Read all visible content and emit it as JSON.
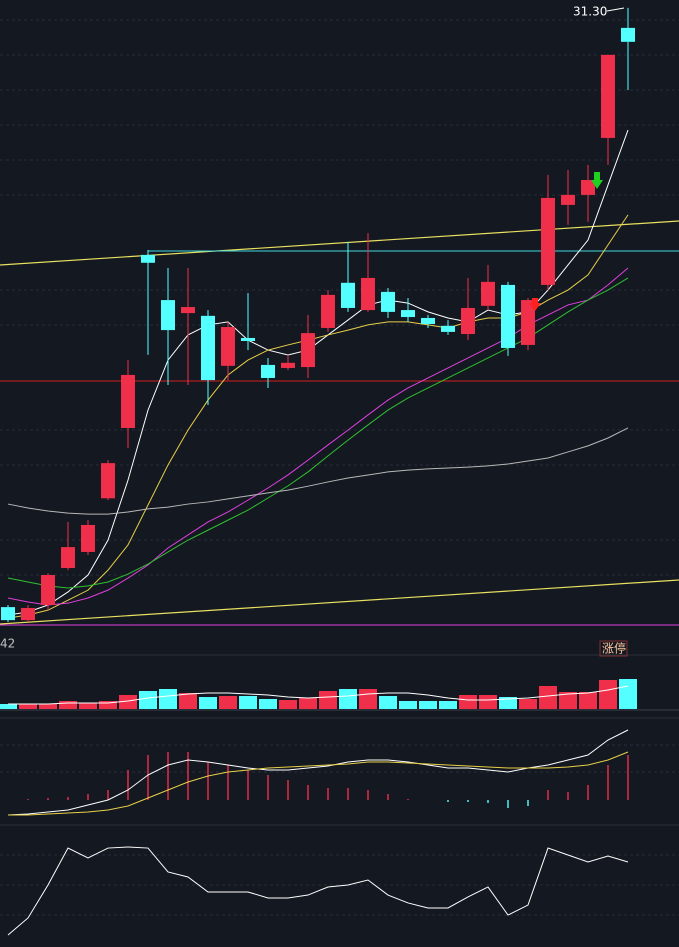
{
  "chart_data": [
    {
      "type": "candlestick",
      "annotation": "31.30",
      "up_color": "#f0304a",
      "down_color": "#54ffff",
      "ylim": [
        10.94,
        31.56
      ],
      "open": [
        11.53,
        11.1,
        11.6,
        12.82,
        13.35,
        15.12,
        17.44,
        23.15,
        21.66,
        21.23,
        21.14,
        19.49,
        20.41,
        19.52,
        19.42,
        19.45,
        20.74,
        22.23,
        21.33,
        21.93,
        21.33,
        21.07,
        20.81,
        20.54,
        21.47,
        22.16,
        20.18,
        22.16,
        24.8,
        25.13,
        27.01,
        30.64
      ],
      "close": [
        11.1,
        11.5,
        12.59,
        13.51,
        14.24,
        16.28,
        19.19,
        22.89,
        20.67,
        21.43,
        19.02,
        20.77,
        20.31,
        19.09,
        19.59,
        20.57,
        21.83,
        21.4,
        22.39,
        21.27,
        21.1,
        20.87,
        20.61,
        21.4,
        22.26,
        20.08,
        21.66,
        25.03,
        25.13,
        25.62,
        29.75,
        30.18
      ],
      "high": [
        11.6,
        11.6,
        12.65,
        14.34,
        14.4,
        16.38,
        19.68,
        23.31,
        22.72,
        22.72,
        21.33,
        20.94,
        21.89,
        19.75,
        19.85,
        21.17,
        21.99,
        23.58,
        23.87,
        22.06,
        21.73,
        21.17,
        21.0,
        22.39,
        22.82,
        22.26,
        21.73,
        25.79,
        25.95,
        26.12,
        29.75,
        31.3
      ],
      "low": [
        11.04,
        11.04,
        11.43,
        12.75,
        13.25,
        15.06,
        16.78,
        19.85,
        18.86,
        18.86,
        18.2,
        19.02,
        20.01,
        18.76,
        19.35,
        19.09,
        20.61,
        21.27,
        21.27,
        21.07,
        20.94,
        20.74,
        20.51,
        20.34,
        21.33,
        19.82,
        20.01,
        21.99,
        24.14,
        24.24,
        26.12,
        28.59
      ],
      "overlays": [
        {
          "color": "#ffffff",
          "values": [
            11.27,
            11.37,
            11.6,
            12.03,
            12.59,
            13.74,
            15.72,
            18.03,
            19.68,
            20.51,
            20.84,
            20.94,
            20.34,
            20.01,
            19.85,
            20.01,
            20.51,
            21.0,
            21.5,
            21.66,
            21.56,
            21.27,
            21.07,
            20.94,
            21.33,
            21.17,
            21.27,
            21.99,
            22.82,
            23.64,
            25.46,
            27.27
          ]
        },
        {
          "color": "#e8d048",
          "values": [
            11.17,
            11.27,
            11.43,
            11.76,
            12.09,
            12.75,
            13.58,
            14.9,
            16.22,
            17.37,
            18.36,
            19.19,
            19.68,
            20.01,
            20.18,
            20.34,
            20.51,
            20.67,
            20.84,
            20.94,
            20.94,
            20.84,
            20.74,
            20.94,
            21.07,
            21.07,
            21.27,
            21.66,
            21.99,
            22.49,
            23.48,
            24.47
          ]
        },
        {
          "color": "#e040e0",
          "values": [
            11.83,
            11.7,
            11.6,
            11.66,
            11.83,
            12.09,
            12.49,
            12.92,
            13.48,
            13.91,
            14.34,
            14.67,
            15.06,
            15.46,
            15.89,
            16.38,
            16.88,
            17.37,
            17.87,
            18.36,
            18.76,
            19.09,
            19.42,
            19.75,
            20.08,
            20.41,
            20.84,
            21.17,
            21.5,
            21.66,
            22.16,
            22.72
          ]
        },
        {
          "color": "#30c030",
          "values": [
            12.49,
            12.36,
            12.23,
            12.16,
            12.23,
            12.36,
            12.62,
            12.95,
            13.35,
            13.74,
            14.07,
            14.4,
            14.73,
            15.13,
            15.53,
            15.99,
            16.52,
            17.04,
            17.54,
            18.03,
            18.43,
            18.76,
            19.09,
            19.42,
            19.75,
            20.08,
            20.41,
            20.84,
            21.27,
            21.66,
            21.99,
            22.39
          ]
        },
        {
          "color": "#b8b8b8",
          "values": [
            14.93,
            14.8,
            14.7,
            14.63,
            14.6,
            14.6,
            14.67,
            14.77,
            14.83,
            14.93,
            15.0,
            15.1,
            15.2,
            15.3,
            15.39,
            15.52,
            15.66,
            15.79,
            15.89,
            15.99,
            16.05,
            16.09,
            16.12,
            16.15,
            16.19,
            16.25,
            16.35,
            16.45,
            16.65,
            16.85,
            17.11,
            17.44
          ]
        }
      ]
    },
    {
      "type": "bar",
      "label": "42",
      "badge": "涨停",
      "ylim": [
        0,
        60
      ],
      "values": [
        5,
        5,
        5,
        8,
        6,
        8,
        14,
        18,
        20,
        16,
        12,
        13,
        13,
        10,
        9,
        11,
        18,
        20,
        20,
        13,
        8,
        8,
        8,
        14,
        14,
        12,
        10,
        23,
        17,
        17,
        29,
        30
      ],
      "overlays": [
        {
          "color": "#ffffff",
          "values": [
            5,
            5,
            5,
            6,
            6,
            6,
            8,
            11,
            13,
            15,
            16,
            16,
            15,
            14,
            12,
            11,
            12,
            13,
            15,
            16,
            16,
            14,
            11,
            9,
            9,
            10,
            11,
            13,
            15,
            16,
            19,
            23
          ]
        }
      ]
    },
    {
      "type": "macd",
      "ylim": [
        -0.5,
        1.5
      ],
      "values": [
        0,
        0.02,
        0.04,
        0.06,
        0.12,
        0.2,
        0.6,
        0.9,
        0.96,
        0.96,
        0.76,
        0.7,
        0.6,
        0.5,
        0.4,
        0.3,
        0.24,
        0.24,
        0.2,
        0.12,
        0.02,
        0,
        -0.04,
        -0.04,
        -0.06,
        -0.16,
        -0.12,
        0.2,
        0.16,
        0.3,
        0.7,
        0.9
      ],
      "overlays": [
        {
          "color": "#ffffff",
          "values": [
            -0.3,
            -0.28,
            -0.24,
            -0.2,
            -0.1,
            0,
            0.2,
            0.5,
            0.7,
            0.8,
            0.76,
            0.7,
            0.64,
            0.6,
            0.6,
            0.64,
            0.68,
            0.76,
            0.8,
            0.8,
            0.76,
            0.7,
            0.64,
            0.64,
            0.6,
            0.56,
            0.64,
            0.7,
            0.8,
            0.9,
            1.2,
            1.4
          ]
        },
        {
          "color": "#e8d048",
          "values": [
            -0.3,
            -0.3,
            -0.28,
            -0.26,
            -0.24,
            -0.2,
            -0.12,
            0.04,
            0.2,
            0.36,
            0.48,
            0.56,
            0.6,
            0.64,
            0.66,
            0.68,
            0.7,
            0.72,
            0.76,
            0.76,
            0.74,
            0.72,
            0.7,
            0.68,
            0.66,
            0.64,
            0.64,
            0.64,
            0.66,
            0.7,
            0.8,
            0.96
          ]
        }
      ]
    },
    {
      "type": "line",
      "ylim": [
        0,
        100
      ],
      "color": "#ffffff",
      "values": [
        9.8,
        23.8,
        50.8,
        81.1,
        73.0,
        81.1,
        82.0,
        81.1,
        61.5,
        57.4,
        45.1,
        45.1,
        45.1,
        40.2,
        40.2,
        42.6,
        49.2,
        50.8,
        54.9,
        42.6,
        36.1,
        32.0,
        32.0,
        41.0,
        49.2,
        26.2,
        34.4,
        81.1,
        75.4,
        69.7,
        74.6,
        69.7
      ]
    }
  ]
}
